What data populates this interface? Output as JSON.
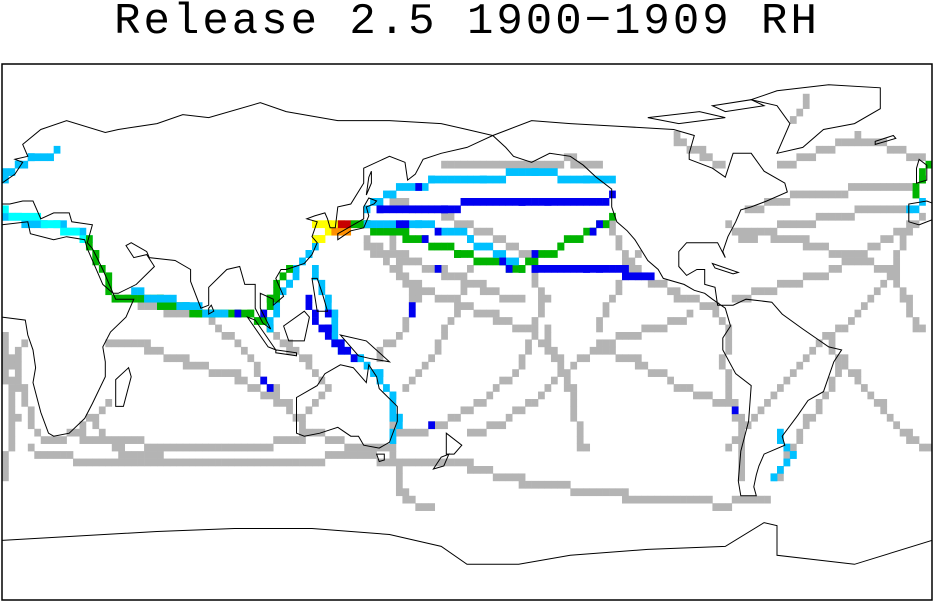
{
  "header": {
    "title": "Release 2.5 1900−1909 RH"
  }
}
